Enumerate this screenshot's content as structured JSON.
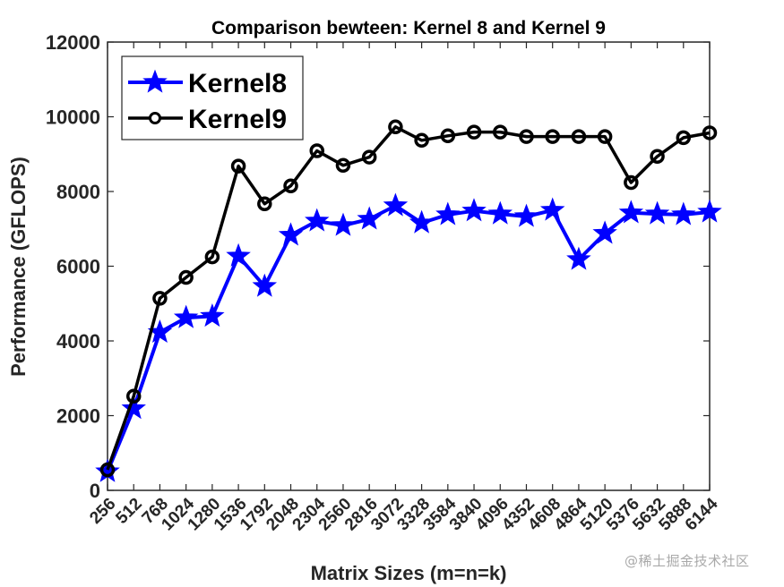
{
  "chart_data": {
    "type": "line",
    "title": "Comparison bewteen: Kernel 8 and Kernel 9",
    "xlabel": "Matrix Sizes (m=n=k)",
    "ylabel": "Performance (GFLOPS)",
    "ylim": [
      0,
      12000
    ],
    "yticks": [
      0,
      2000,
      4000,
      6000,
      8000,
      10000,
      12000
    ],
    "x": [
      256,
      512,
      768,
      1024,
      1280,
      1536,
      1792,
      2048,
      2304,
      2560,
      2816,
      3072,
      3328,
      3584,
      3840,
      4096,
      4352,
      4608,
      4864,
      5120,
      5376,
      5632,
      5888,
      6144
    ],
    "grid": false,
    "legend_position": "upper left",
    "series": [
      {
        "name": "Kernel8",
        "color": "#0000ff",
        "marker": "star",
        "values": [
          500,
          2190,
          4230,
          4620,
          4660,
          6270,
          5460,
          6830,
          7210,
          7090,
          7260,
          7620,
          7160,
          7380,
          7480,
          7400,
          7330,
          7500,
          6180,
          6880,
          7430,
          7400,
          7380,
          7450
        ]
      },
      {
        "name": "Kernel9",
        "color": "#000000",
        "marker": "circle",
        "values": [
          550,
          2520,
          5140,
          5700,
          6250,
          8680,
          7670,
          8150,
          9090,
          8700,
          8920,
          9730,
          9370,
          9490,
          9590,
          9590,
          9470,
          9470,
          9470,
          9470,
          8240,
          8940,
          9440,
          9570
        ]
      }
    ]
  },
  "watermark": "@稀土掘金技术社区"
}
